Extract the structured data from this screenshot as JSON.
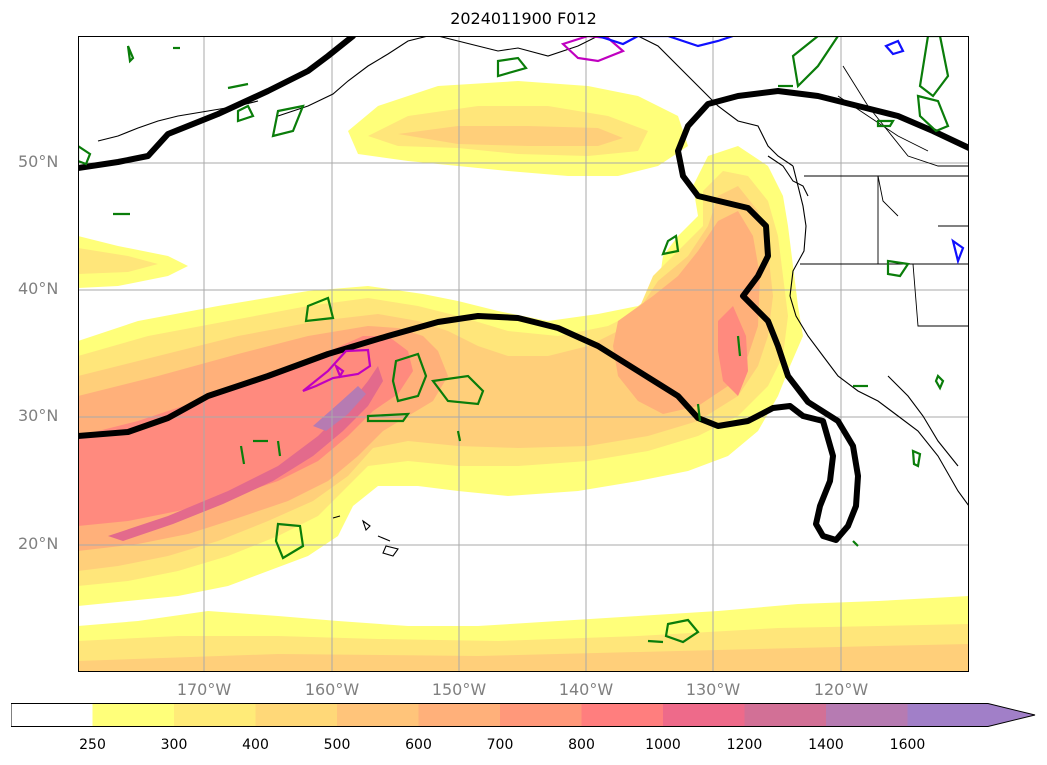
{
  "title": "2024011900 F012",
  "map": {
    "lat_labels": [
      "50°N",
      "40°N",
      "30°N",
      "20°N"
    ],
    "lon_labels": [
      "170°W",
      "160°W",
      "150°W",
      "140°W",
      "130°W",
      "120°W"
    ],
    "extent": {
      "lon_min": -180,
      "lon_max": -110,
      "lat_min": 10,
      "lat_max": 60
    },
    "layers": [
      "ivt-fill",
      "jet-contour",
      "coastlines",
      "state-borders",
      "green-contours",
      "magenta-contours",
      "blue-contours"
    ]
  },
  "colorbar": {
    "labels": [
      "250",
      "300",
      "400",
      "500",
      "600",
      "700",
      "800",
      "1000",
      "1200",
      "1400",
      "1600"
    ],
    "colors": [
      "#ffffff",
      "#ffff7a",
      "#ffeb78",
      "#ffd878",
      "#ffc47a",
      "#ffb07a",
      "#ff987a",
      "#ff7e7e",
      "#ee6a8a",
      "#d27096",
      "#b67bb2",
      "#a17fc8"
    ],
    "extend": "max"
  },
  "fill_colors": {
    "level1": "#ffff7a",
    "level2": "#ffe67a",
    "level3": "#ffcf7a",
    "level4": "#ffb07a",
    "level5": "#ff8a7e",
    "level6": "#e36a8c",
    "level7": "#b67bb2"
  },
  "line_colors": {
    "jet": "#000000",
    "green": "#0a7d0a",
    "magenta": "#c000c0",
    "blue": "#1010ff"
  }
}
